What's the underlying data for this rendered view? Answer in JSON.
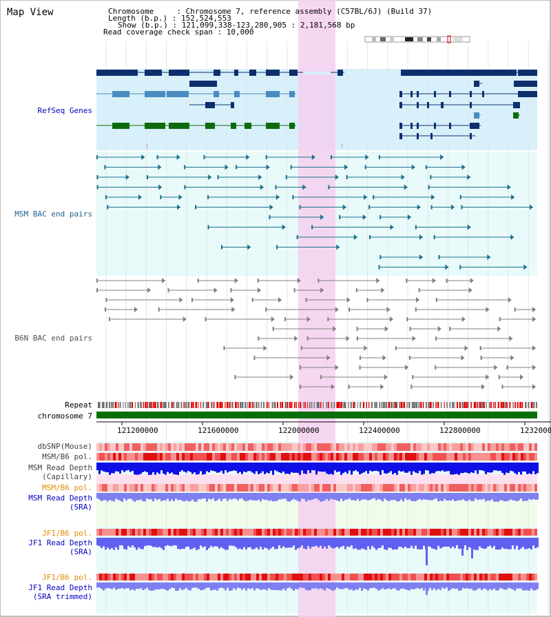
{
  "page": {
    "title": "Map View"
  },
  "header": {
    "chromosome_line": "Chromosome     : Chromosome 7, reference assembly (C57BL/6J) (Build 37)",
    "length_line": "Length (b.p.) : 152,524,553",
    "show_line": "Show (b.p.) : 121,099,338-123,280,905 : 2,181,568 bp",
    "coverage_line": "Read coverage check span : 10,000"
  },
  "region": {
    "start": 121099338,
    "end": 123280905,
    "highlight_start": 122000000,
    "highlight_end": 122180000
  },
  "tracks": {
    "refseq": "RefSeq Genes",
    "msm_bac": "MSM BAC end pairs",
    "b6n_bac": "B6N BAC end pairs",
    "repeat": "Repeat",
    "chromosome": "chromosome 7",
    "dbsnp": "dbSNP(Mouse)",
    "msm_b6_pol_1": "MSM/B6 pol.",
    "msm_read_depth_cap_1": "MSM Read Depth",
    "msm_read_depth_cap_2": "(Capillary)",
    "msm_b6_pol_2": "MSM/B6 pol.",
    "msm_read_depth_sra_1": "MSM Read Depth",
    "msm_read_depth_sra_2": "(SRA)",
    "jf1_b6_pol_1": "JF1/B6 pol.",
    "jf1_read_depth_sra_1": "JF1 Read Depth",
    "jf1_read_depth_sra_2": "(SRA)",
    "jf1_b6_pol_2": "JF1/B6 pol.",
    "jf1_read_depth_trim_1": "JF1 Read Depth",
    "jf1_read_depth_trim_2": "(SRA trimmed)"
  },
  "axis": {
    "ticks": [
      "121200000",
      "121600000",
      "122000000",
      "122400000",
      "122800000",
      "1232000"
    ]
  },
  "colors": {
    "refseq_bg": "#d8f0fa",
    "bac_bg": "#e8fafa",
    "highlight": "#f5d0ee",
    "gene_dark": "#0d2f6e",
    "gene_mid": "#4a8cc0",
    "gene_green": "#0d6b0d",
    "msm_line": "#1e6e8c",
    "b6n_line": "#808080",
    "chromosome": "#0a6e0a",
    "depth_blue": "#1010e6",
    "depth_light": "#7f7ff0",
    "label_blue": "#0000c0",
    "label_orange": "#e08c00",
    "label_gray": "#404040"
  }
}
